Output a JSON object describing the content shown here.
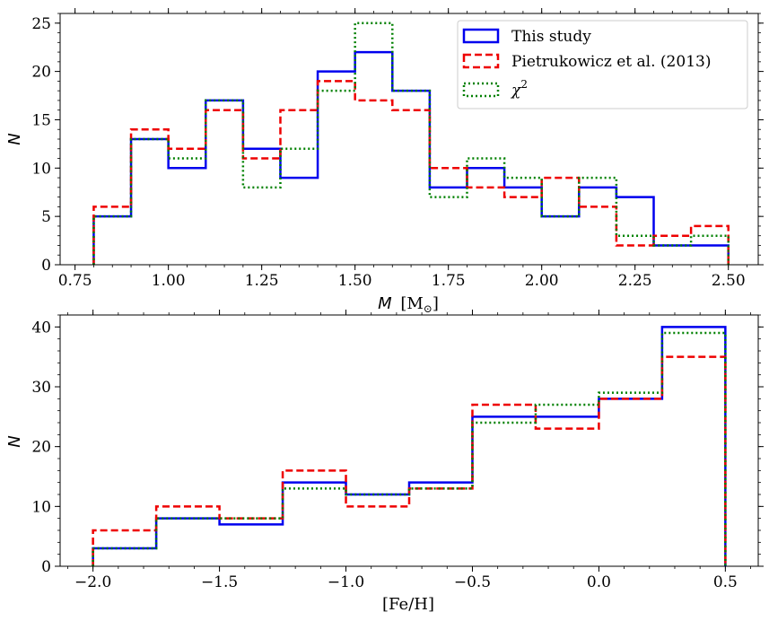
{
  "colors": {
    "blue": "#0000ee",
    "red": "#ee0000",
    "green": "#008000"
  },
  "legend": {
    "this_study": "This study",
    "pietrukowicz": "Pietrukowicz et al. (2013)",
    "chi_base": "χ",
    "chi_sup": "2"
  },
  "chart_data": [
    {
      "type": "histogram",
      "title": "",
      "xlabel_italic": "M",
      "xlabel_unit": "[M",
      "xlabel_sub": "⊙",
      "xlabel_close": "]",
      "ylabel": "N",
      "xlim": [
        0.71,
        2.58
      ],
      "ylim": [
        0,
        26
      ],
      "xticks": [
        0.75,
        1.0,
        1.25,
        1.5,
        1.75,
        2.0,
        2.25,
        2.5
      ],
      "xtick_labels": [
        "0.75",
        "1.00",
        "1.25",
        "1.50",
        "1.75",
        "2.00",
        "2.25",
        "2.50"
      ],
      "yticks": [
        0,
        5,
        10,
        15,
        20,
        25
      ],
      "ytick_labels": [
        "0",
        "5",
        "10",
        "15",
        "20",
        "25"
      ],
      "xminor": 0.05,
      "yminor": 1,
      "bin_edges": [
        0.8,
        0.9,
        1.0,
        1.1,
        1.2,
        1.3,
        1.4,
        1.5,
        1.6,
        1.7,
        1.8,
        1.9,
        2.0,
        2.1,
        2.2,
        2.3,
        2.4,
        2.5
      ],
      "series": [
        {
          "name": "This study",
          "values": [
            5,
            13,
            10,
            17,
            12,
            9,
            20,
            22,
            18,
            8,
            10,
            8,
            5,
            8,
            7,
            2,
            2
          ]
        },
        {
          "name": "Pietrukowicz et al. (2013)",
          "values": [
            6,
            14,
            12,
            16,
            11,
            16,
            19,
            17,
            16,
            10,
            8,
            7,
            9,
            6,
            2,
            3,
            4
          ]
        },
        {
          "name": "χ2",
          "values": [
            5,
            13,
            11,
            17,
            8,
            12,
            18,
            25,
            18,
            7,
            11,
            9,
            5,
            9,
            3,
            2,
            3
          ]
        }
      ],
      "legend_position": "upper-right"
    },
    {
      "type": "histogram",
      "title": "",
      "xlabel": "[Fe/H]",
      "ylabel": "N",
      "xlim": [
        -2.13,
        0.63
      ],
      "ylim": [
        0,
        42
      ],
      "xticks": [
        -2.0,
        -1.5,
        -1.0,
        -0.5,
        0.0,
        0.5
      ],
      "xtick_labels": [
        "−2.0",
        "−1.5",
        "−1.0",
        "−0.5",
        "0.0",
        "0.5"
      ],
      "yticks": [
        0,
        10,
        20,
        30,
        40
      ],
      "ytick_labels": [
        "0",
        "10",
        "20",
        "30",
        "40"
      ],
      "xminor": 0.1,
      "yminor": 2,
      "bin_edges": [
        -2.0,
        -1.75,
        -1.5,
        -1.25,
        -1.0,
        -0.75,
        -0.5,
        -0.25,
        0.0,
        0.25,
        0.5
      ],
      "series": [
        {
          "name": "This study",
          "values": [
            3,
            8,
            7,
            14,
            12,
            14,
            25,
            25,
            28,
            40
          ]
        },
        {
          "name": "Pietrukowicz et al. (2013)",
          "values": [
            6,
            10,
            8,
            16,
            10,
            13,
            27,
            23,
            28,
            35
          ]
        },
        {
          "name": "χ2",
          "values": [
            3,
            8,
            8,
            13,
            12,
            13,
            24,
            27,
            29,
            39
          ]
        }
      ]
    }
  ]
}
